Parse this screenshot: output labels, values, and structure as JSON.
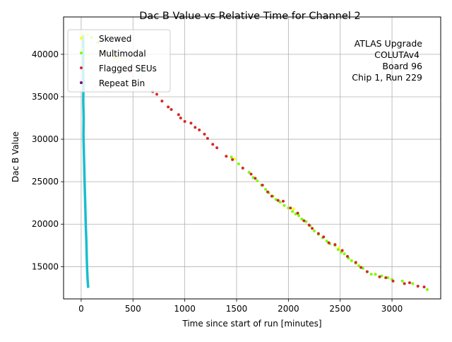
{
  "chart_data": {
    "type": "scatter",
    "title": "Dac B Value vs Relative Time for Channel 2",
    "xlabel": "Time since start of run [minutes]",
    "ylabel": "Dac B Value",
    "xlim": [
      -170,
      3470
    ],
    "ylim": [
      11200,
      44400
    ],
    "x_ticks": [
      0,
      500,
      1000,
      1500,
      2000,
      2500,
      3000
    ],
    "y_ticks": [
      15000,
      20000,
      25000,
      30000,
      35000,
      40000
    ],
    "grid": true,
    "legend_position": "top-left",
    "annotation": [
      "ATLAS Upgrade",
      "COLUTAv4",
      "Board 96",
      "Chip 1, Run 229"
    ],
    "colors": {
      "main": "#17becf",
      "skewed": "#ffff00",
      "multimodal": "#7cfc00",
      "flagged": "#d62728",
      "repeat": "#800080"
    },
    "series": [
      {
        "name": "Skewed",
        "color": "#ffff00",
        "points": [
          [
            10,
            42400
          ],
          [
            60,
            42300
          ],
          [
            350,
            39600
          ],
          [
            1480,
            27700
          ],
          [
            2050,
            21800
          ],
          [
            2490,
            17200
          ]
        ]
      },
      {
        "name": "Multimodal",
        "color": "#7cfc00",
        "points": [
          [
            10,
            40600
          ],
          [
            100,
            42000
          ],
          [
            160,
            41400
          ],
          [
            240,
            40400
          ],
          [
            320,
            39700
          ],
          [
            1450,
            27900
          ],
          [
            1520,
            27100
          ],
          [
            1620,
            26100
          ],
          [
            1660,
            25500
          ],
          [
            1700,
            25100
          ],
          [
            1740,
            24600
          ],
          [
            1780,
            24100
          ],
          [
            1810,
            23700
          ],
          [
            1850,
            23300
          ],
          [
            1880,
            22900
          ],
          [
            1920,
            22600
          ],
          [
            1960,
            22200
          ],
          [
            2000,
            21900
          ],
          [
            2040,
            21500
          ],
          [
            2070,
            21200
          ],
          [
            2100,
            21000
          ],
          [
            2130,
            20600
          ],
          [
            2170,
            20300
          ],
          [
            2210,
            19800
          ],
          [
            2250,
            19200
          ],
          [
            2290,
            18800
          ],
          [
            2330,
            18400
          ],
          [
            2370,
            18000
          ],
          [
            2400,
            17700
          ],
          [
            2450,
            17500
          ],
          [
            2480,
            17000
          ],
          [
            2510,
            16700
          ],
          [
            2540,
            16500
          ],
          [
            2580,
            16000
          ],
          [
            2610,
            15700
          ],
          [
            2650,
            15400
          ],
          [
            2680,
            15100
          ],
          [
            2720,
            14800
          ],
          [
            2760,
            14400
          ],
          [
            2800,
            14100
          ],
          [
            2840,
            14100
          ],
          [
            2900,
            13900
          ],
          [
            2960,
            13700
          ],
          [
            3000,
            13500
          ],
          [
            3100,
            13300
          ],
          [
            3200,
            13000
          ],
          [
            3340,
            12300
          ]
        ]
      },
      {
        "name": "Flagged SEUs",
        "color": "#d62728",
        "points": [
          [
            470,
            38000
          ],
          [
            690,
            35600
          ],
          [
            730,
            35300
          ],
          [
            780,
            34500
          ],
          [
            840,
            33800
          ],
          [
            870,
            33500
          ],
          [
            940,
            32900
          ],
          [
            960,
            32500
          ],
          [
            1000,
            32100
          ],
          [
            1060,
            31900
          ],
          [
            1100,
            31400
          ],
          [
            1140,
            31100
          ],
          [
            1190,
            30600
          ],
          [
            1220,
            30100
          ],
          [
            1270,
            29400
          ],
          [
            1310,
            29000
          ],
          [
            1400,
            28000
          ],
          [
            1460,
            27600
          ],
          [
            1560,
            26600
          ],
          [
            1640,
            25900
          ],
          [
            1680,
            25400
          ],
          [
            1750,
            24600
          ],
          [
            1800,
            23800
          ],
          [
            1840,
            23300
          ],
          [
            1900,
            22800
          ],
          [
            1950,
            22700
          ],
          [
            2020,
            21900
          ],
          [
            2090,
            21300
          ],
          [
            2150,
            20400
          ],
          [
            2200,
            19900
          ],
          [
            2230,
            19500
          ],
          [
            2290,
            18900
          ],
          [
            2340,
            18500
          ],
          [
            2390,
            17800
          ],
          [
            2450,
            17600
          ],
          [
            2520,
            16900
          ],
          [
            2570,
            16200
          ],
          [
            2650,
            15500
          ],
          [
            2700,
            14900
          ],
          [
            2760,
            14400
          ],
          [
            2880,
            13800
          ],
          [
            2940,
            13700
          ],
          [
            3010,
            13300
          ],
          [
            3120,
            13000
          ],
          [
            3170,
            13100
          ],
          [
            3250,
            12700
          ],
          [
            3310,
            12600
          ]
        ]
      },
      {
        "name": "Repeat Bin",
        "color": "#800080",
        "points": []
      }
    ],
    "main_series": {
      "color": "#17becf",
      "points": [
        [
          18,
          42300
        ],
        [
          20,
          40500
        ],
        [
          18,
          38500
        ],
        [
          22,
          36500
        ],
        [
          20,
          34500
        ],
        [
          24,
          32500
        ],
        [
          22,
          30500
        ],
        [
          26,
          28500
        ],
        [
          30,
          26500
        ],
        [
          34,
          24500
        ],
        [
          40,
          22000
        ],
        [
          44,
          20000
        ],
        [
          50,
          18000
        ],
        [
          54,
          16000
        ],
        [
          58,
          14500
        ],
        [
          62,
          13500
        ],
        [
          68,
          12500
        ]
      ]
    }
  }
}
